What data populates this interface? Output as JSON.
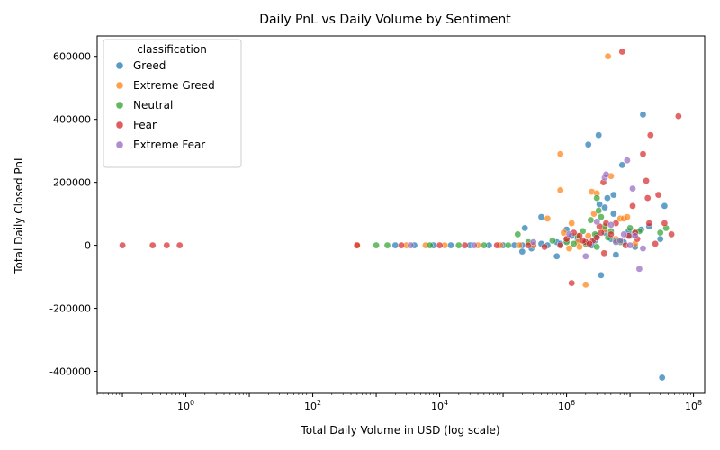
{
  "chart_data": {
    "type": "scatter",
    "title": "Daily PnL vs Daily Volume by Sentiment",
    "xlabel": "Total Daily Volume in USD (log scale)",
    "ylabel": "Total Daily Closed PnL",
    "xscale": "log",
    "xlim": [
      0.04,
      150000000
    ],
    "ylim": [
      -470000,
      665000
    ],
    "x_ticks": [
      {
        "value": 1,
        "label": "10^0"
      },
      {
        "value": 100,
        "label": "10^2"
      },
      {
        "value": 10000,
        "label": "10^4"
      },
      {
        "value": 1000000,
        "label": "10^6"
      },
      {
        "value": 100000000,
        "label": "10^8"
      }
    ],
    "y_ticks": [
      {
        "value": 600000,
        "label": "600000"
      },
      {
        "value": 400000,
        "label": "400000"
      },
      {
        "value": 200000,
        "label": "200000"
      },
      {
        "value": 0,
        "label": "0"
      },
      {
        "value": -200000,
        "label": "-200000"
      },
      {
        "value": -400000,
        "label": "-400000"
      }
    ],
    "legend": {
      "title": "classification",
      "placement": "upper-left"
    },
    "grid": false,
    "series": [
      {
        "name": "Greed",
        "color": "#1f77b4",
        "points": [
          [
            2000,
            0
          ],
          [
            4000,
            0
          ],
          [
            8000,
            0
          ],
          [
            15000,
            0
          ],
          [
            30000,
            0
          ],
          [
            60000,
            0
          ],
          [
            100000,
            0
          ],
          [
            150000,
            0
          ],
          [
            200000,
            0
          ],
          [
            300000,
            0
          ],
          [
            400000,
            5000
          ],
          [
            500000,
            0
          ],
          [
            700000,
            10000
          ],
          [
            1000000,
            15000
          ],
          [
            1500000,
            20000
          ],
          [
            2000000,
            10000
          ],
          [
            2500000,
            0
          ],
          [
            3000000,
            30000
          ],
          [
            4000000,
            40000
          ],
          [
            5000000,
            20000
          ],
          [
            6000000,
            -30000
          ],
          [
            8000000,
            10000
          ],
          [
            10000000,
            30000
          ],
          [
            12000000,
            -5000
          ],
          [
            15000000,
            50000
          ],
          [
            20000000,
            60000
          ],
          [
            30000000,
            20000
          ],
          [
            35000000,
            125000
          ],
          [
            220000,
            55000
          ],
          [
            400000,
            90000
          ],
          [
            700000,
            -35000
          ],
          [
            2200000,
            320000
          ],
          [
            3200000,
            350000
          ],
          [
            16000000,
            415000
          ],
          [
            7500000,
            255000
          ],
          [
            5500000,
            160000
          ],
          [
            3300000,
            130000
          ],
          [
            4400000,
            150000
          ],
          [
            4000000,
            120000
          ],
          [
            3500000,
            -95000
          ],
          [
            200000,
            -20000
          ],
          [
            280000,
            -10000
          ],
          [
            1000000,
            50000
          ],
          [
            5500000,
            100000
          ],
          [
            32000000,
            -420000
          ],
          [
            9500000,
            45000
          ],
          [
            1200000,
            30000
          ],
          [
            2800000,
            15000
          ],
          [
            800000,
            5000
          ],
          [
            6500000,
            15000
          ]
        ]
      },
      {
        "name": "Extreme Greed",
        "color": "#ff7f0e",
        "points": [
          [
            500,
            0
          ],
          [
            3000,
            0
          ],
          [
            6000,
            0
          ],
          [
            12000,
            0
          ],
          [
            40000,
            0
          ],
          [
            90000,
            0
          ],
          [
            180000,
            0
          ],
          [
            300000,
            0
          ],
          [
            500000,
            85000
          ],
          [
            800000,
            290000
          ],
          [
            800000,
            175000
          ],
          [
            1200000,
            70000
          ],
          [
            1500000,
            10000
          ],
          [
            2000000,
            -125000
          ],
          [
            2500000,
            170000
          ],
          [
            2700000,
            100000
          ],
          [
            3000000,
            165000
          ],
          [
            4500000,
            600000
          ],
          [
            5000000,
            220000
          ],
          [
            7000000,
            85000
          ],
          [
            8000000,
            85000
          ],
          [
            9000000,
            90000
          ],
          [
            1000000,
            20000
          ],
          [
            900000,
            40000
          ],
          [
            2200000,
            30000
          ],
          [
            4000000,
            50000
          ],
          [
            1100000,
            -10000
          ],
          [
            1600000,
            -5000
          ],
          [
            6000000,
            20000
          ],
          [
            12000000,
            5000
          ]
        ]
      },
      {
        "name": "Neutral",
        "color": "#2ca02c",
        "points": [
          [
            1000,
            0
          ],
          [
            1500,
            0
          ],
          [
            7000,
            0
          ],
          [
            20000,
            0
          ],
          [
            50000,
            0
          ],
          [
            120000,
            0
          ],
          [
            170000,
            35000
          ],
          [
            250000,
            10000
          ],
          [
            600000,
            15000
          ],
          [
            1000000,
            10000
          ],
          [
            1300000,
            5000
          ],
          [
            1800000,
            45000
          ],
          [
            2400000,
            80000
          ],
          [
            2800000,
            35000
          ],
          [
            3000000,
            150000
          ],
          [
            3200000,
            110000
          ],
          [
            3500000,
            90000
          ],
          [
            4000000,
            60000
          ],
          [
            5000000,
            45000
          ],
          [
            6000000,
            15000
          ],
          [
            7000000,
            10000
          ],
          [
            10000000,
            55000
          ],
          [
            12000000,
            40000
          ],
          [
            14000000,
            45000
          ],
          [
            30000000,
            40000
          ],
          [
            37000000,
            55000
          ],
          [
            2000000,
            5000
          ],
          [
            4500000,
            25000
          ],
          [
            1500000,
            30000
          ],
          [
            3000000,
            -5000
          ]
        ]
      },
      {
        "name": "Fear",
        "color": "#d62728",
        "points": [
          [
            0.1,
            0
          ],
          [
            0.3,
            0
          ],
          [
            0.5,
            0
          ],
          [
            0.8,
            0
          ],
          [
            500,
            0
          ],
          [
            2500,
            0
          ],
          [
            10000,
            0
          ],
          [
            25000,
            0
          ],
          [
            80000,
            0
          ],
          [
            250000,
            0
          ],
          [
            450000,
            -5000
          ],
          [
            800000,
            0
          ],
          [
            1000000,
            20000
          ],
          [
            1200000,
            -120000
          ],
          [
            1300000,
            40000
          ],
          [
            1600000,
            30000
          ],
          [
            2000000,
            10000
          ],
          [
            2600000,
            15000
          ],
          [
            3300000,
            60000
          ],
          [
            3800000,
            200000
          ],
          [
            3900000,
            -25000
          ],
          [
            4200000,
            70000
          ],
          [
            6000000,
            70000
          ],
          [
            7500000,
            615000
          ],
          [
            8500000,
            0
          ],
          [
            11000000,
            125000
          ],
          [
            13000000,
            20000
          ],
          [
            16000000,
            290000
          ],
          [
            18000000,
            205000
          ],
          [
            19000000,
            150000
          ],
          [
            21000000,
            350000
          ],
          [
            25000000,
            5000
          ],
          [
            28000000,
            160000
          ],
          [
            35000000,
            70000
          ],
          [
            45000000,
            35000
          ],
          [
            58000000,
            410000
          ],
          [
            20000000,
            70000
          ],
          [
            3000000,
            25000
          ],
          [
            3500000,
            40000
          ],
          [
            5000000,
            35000
          ],
          [
            1800000,
            15000
          ],
          [
            12000000,
            40000
          ],
          [
            9500000,
            30000
          ],
          [
            2300000,
            5000
          ]
        ]
      },
      {
        "name": "Extreme Fear",
        "color": "#9467bd",
        "points": [
          [
            3500,
            0
          ],
          [
            35000,
            0
          ],
          [
            300000,
            10000
          ],
          [
            1100000,
            35000
          ],
          [
            2000000,
            -35000
          ],
          [
            4000000,
            215000
          ],
          [
            4200000,
            225000
          ],
          [
            5000000,
            65000
          ],
          [
            6000000,
            10000
          ],
          [
            8000000,
            35000
          ],
          [
            9000000,
            270000
          ],
          [
            11000000,
            180000
          ],
          [
            12000000,
            30000
          ],
          [
            14000000,
            -75000
          ],
          [
            16000000,
            -10000
          ],
          [
            3000000,
            75000
          ],
          [
            7000000,
            15000
          ],
          [
            10000000,
            0
          ]
        ]
      }
    ]
  }
}
